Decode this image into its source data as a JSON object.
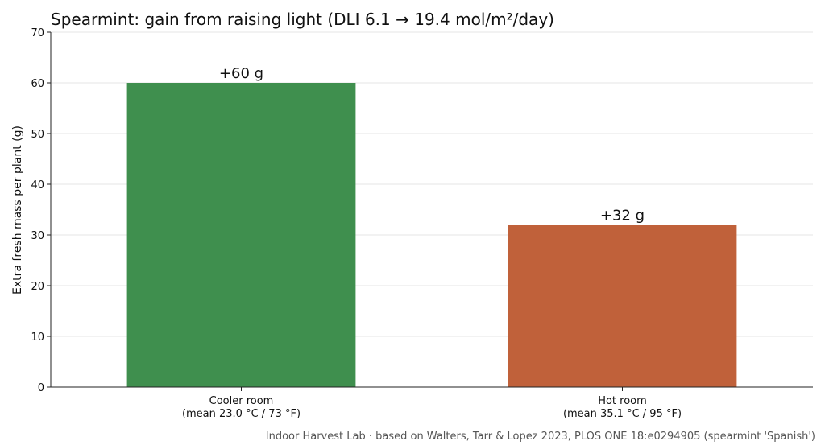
{
  "chart_data": {
    "type": "bar",
    "title": "Spearmint: gain from raising light (DLI 6.1 → 19.4 mol/m²/day)",
    "ylabel": "Extra fresh mass per plant (g)",
    "xlabel": "",
    "ylim": [
      0,
      70
    ],
    "yticks": [
      0,
      10,
      20,
      30,
      40,
      50,
      60,
      70
    ],
    "grid": true,
    "categories": [
      [
        "Cooler room",
        "(mean 23.0 °C / 73 °F)"
      ],
      [
        "Hot room",
        "(mean 35.1 °C / 95 °F)"
      ]
    ],
    "values": [
      60,
      32
    ],
    "data_labels": [
      "+60 g",
      "+32 g"
    ],
    "colors": [
      "#3f8f4e",
      "#c0613a"
    ]
  },
  "footer": {
    "source_note": "Indoor Harvest Lab · based on Walters, Tarr & Lopez 2023, PLOS ONE 18:e0294905 (spearmint 'Spanish')"
  }
}
